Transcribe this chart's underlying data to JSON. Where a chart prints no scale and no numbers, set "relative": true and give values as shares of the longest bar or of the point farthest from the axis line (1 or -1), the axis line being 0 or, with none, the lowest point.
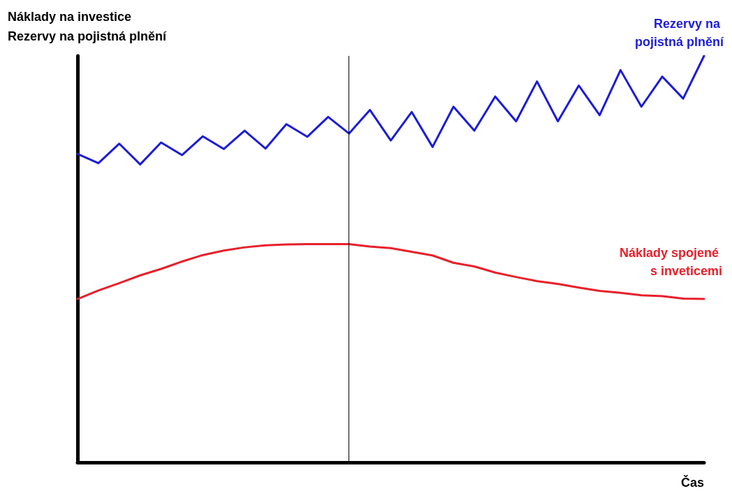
{
  "chart_data": {
    "type": "line",
    "relative": true,
    "xlabel": "Čas",
    "ylabel": "Náklady na investice\nRezervy na pojistná plnění",
    "categories": [
      null,
      null,
      null,
      null,
      null,
      null,
      null,
      null,
      null,
      null,
      null,
      null,
      null,
      null,
      null,
      null,
      null,
      null,
      null,
      null,
      null,
      null,
      null,
      null,
      null,
      null,
      null,
      null,
      null,
      null,
      null
    ],
    "grid": false,
    "legend": false,
    "marker": "none",
    "line_style": "solid",
    "series": [
      {
        "name": "Rezervy na pojistná plnění",
        "color": "#1c1cd8",
        "values": [
          0.759,
          0.736,
          0.784,
          0.733,
          0.787,
          0.756,
          0.802,
          0.771,
          0.816,
          0.772,
          0.832,
          0.801,
          0.85,
          0.809,
          0.867,
          0.792,
          0.862,
          0.776,
          0.875,
          0.816,
          0.9,
          0.839,
          0.937,
          0.839,
          0.927,
          0.854,
          0.965,
          0.875,
          0.949,
          0.895,
          1
        ]
      },
      {
        "name": "Náklady spojené s inveticemi",
        "color": "#e8202a",
        "values": [
          0.402,
          0.423,
          0.441,
          0.46,
          0.476,
          0.494,
          0.51,
          0.521,
          0.529,
          0.534,
          0.536,
          0.537,
          0.537,
          0.537,
          0.531,
          0.527,
          0.518,
          0.509,
          0.491,
          0.482,
          0.467,
          0.456,
          0.446,
          0.439,
          0.43,
          0.422,
          0.417,
          0.411,
          0.409,
          0.403,
          0.402
        ]
      }
    ]
  }
}
